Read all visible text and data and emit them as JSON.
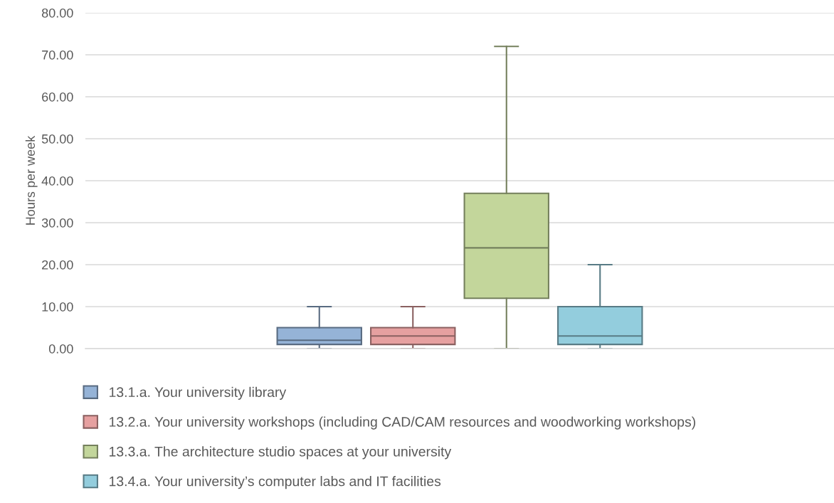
{
  "chart_data": {
    "type": "box",
    "ylabel": "Hours per week",
    "categories": [
      null
    ],
    "ylim": [
      0,
      80
    ],
    "yticks": [
      {
        "value": 0,
        "label": "0.00"
      },
      {
        "value": 10,
        "label": "10.00"
      },
      {
        "value": 20,
        "label": "20.00"
      },
      {
        "value": 30,
        "label": "30.00"
      },
      {
        "value": 40,
        "label": "40.00"
      },
      {
        "value": 50,
        "label": "50.00"
      },
      {
        "value": 60,
        "label": "60.00"
      },
      {
        "value": 70,
        "label": "70.00"
      },
      {
        "value": 80,
        "label": "80.00"
      }
    ],
    "grid": "y",
    "legend": "bottom",
    "series": [
      {
        "name": "13.1.a. Your university library",
        "color": "#95b3d7",
        "boxes": [
          {
            "low": 0,
            "q1": 1,
            "median": 2,
            "q3": 5,
            "high": 10
          }
        ]
      },
      {
        "name": "13.2.a. Your university workshops (including CAD/CAM resources and woodworking workshops)",
        "color": "#e6a0a0",
        "boxes": [
          {
            "low": 0,
            "q1": 1,
            "median": 3,
            "q3": 5,
            "high": 10
          }
        ]
      },
      {
        "name": "13.3.a. The architecture studio spaces at your university",
        "color": "#c3d69b",
        "boxes": [
          {
            "low": 0,
            "q1": 12,
            "median": 24,
            "q3": 37,
            "high": 72
          }
        ]
      },
      {
        "name": "13.4.a. Your university’s computer labs and IT facilities",
        "color": "#93cddd",
        "boxes": [
          {
            "low": 0,
            "q1": 1,
            "median": 3,
            "q3": 10,
            "high": 20
          }
        ]
      }
    ]
  }
}
